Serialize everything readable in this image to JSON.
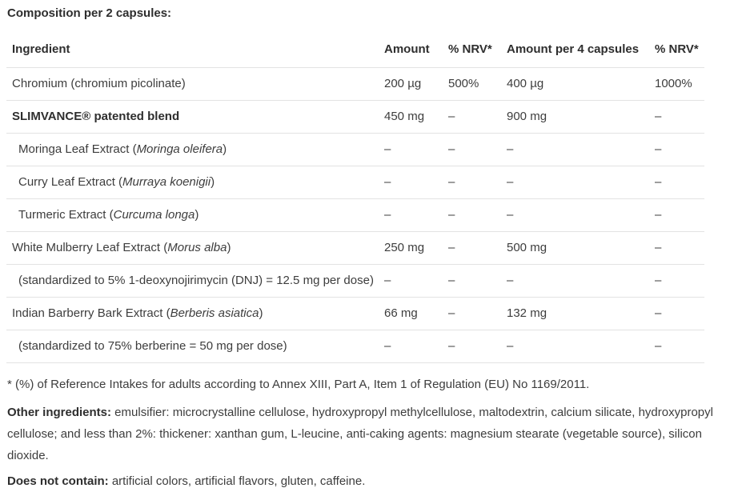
{
  "title": "Composition per 2 capsules:",
  "table": {
    "headers": {
      "ingredient": "Ingredient",
      "amount": "Amount",
      "nrv": "% NRV*",
      "amount4": "Amount per 4 capsules",
      "nrv4": "% NRV*"
    },
    "rows": [
      {
        "name": "Chromium (chromium picolinate)",
        "latin": "",
        "suffix": "",
        "amount": "200 µg",
        "nrv": "500%",
        "amount4": "400 µg",
        "nrv4": "1000%"
      },
      {
        "name": "SLIMVANCE® patented blend",
        "latin": "",
        "suffix": "",
        "amount": "450 mg",
        "nrv": "–",
        "amount4": "900 mg",
        "nrv4": "–"
      },
      {
        "name": "Moringa Leaf Extract (",
        "latin": "Moringa oleifera",
        "suffix": ")",
        "amount": "–",
        "nrv": "–",
        "amount4": "–",
        "nrv4": "–"
      },
      {
        "name": "Curry Leaf Extract (",
        "latin": "Murraya koenigii",
        "suffix": ")",
        "amount": "–",
        "nrv": "–",
        "amount4": "–",
        "nrv4": "–"
      },
      {
        "name": "Turmeric Extract (",
        "latin": "Curcuma longa",
        "suffix": ")",
        "amount": "–",
        "nrv": "–",
        "amount4": "–",
        "nrv4": "–"
      },
      {
        "name": "White Mulberry Leaf Extract (",
        "latin": "Morus alba",
        "suffix": ")",
        "amount": "250 mg",
        "nrv": "–",
        "amount4": "500 mg",
        "nrv4": "–"
      },
      {
        "name": "(standardized to 5% 1-deoxynojirimycin (DNJ) = 12.5 mg per dose)",
        "latin": "",
        "suffix": "",
        "amount": "–",
        "nrv": "–",
        "amount4": "–",
        "nrv4": "–"
      },
      {
        "name": "Indian Barberry Bark Extract (",
        "latin": "Berberis asiatica",
        "suffix": ")",
        "amount": "66 mg",
        "nrv": "–",
        "amount4": "132 mg",
        "nrv4": "–"
      },
      {
        "name": "(standardized to 75% berberine = 50 mg per dose)",
        "latin": "",
        "suffix": "",
        "amount": "–",
        "nrv": "–",
        "amount4": "–",
        "nrv4": "–"
      }
    ]
  },
  "footnotes": {
    "reference": "* (%) of Reference Intakes for adults according to Annex XIII, Part A, Item 1 of Regulation (EU) No 1169/2011.",
    "other_ingredients_label": "Other ingredients:",
    "other_ingredients_text": " emulsifier: microcrystalline cellulose, hydroxypropyl methylcellulose, maltodextrin, calcium silicate, hydroxypropyl cellulose; and less than 2%: thickener: xanthan gum, L-leucine, anti-caking agents: magnesium stearate (vegetable source), silicon dioxide.",
    "does_not_contain_label": "Does not contain:",
    "does_not_contain_text": " artificial colors, artificial flavors, gluten, caffeine."
  },
  "colors": {
    "text": "#3d3d3d",
    "heading": "#2e2e2e",
    "divider": "#e3e3e3",
    "background": "#ffffff"
  }
}
